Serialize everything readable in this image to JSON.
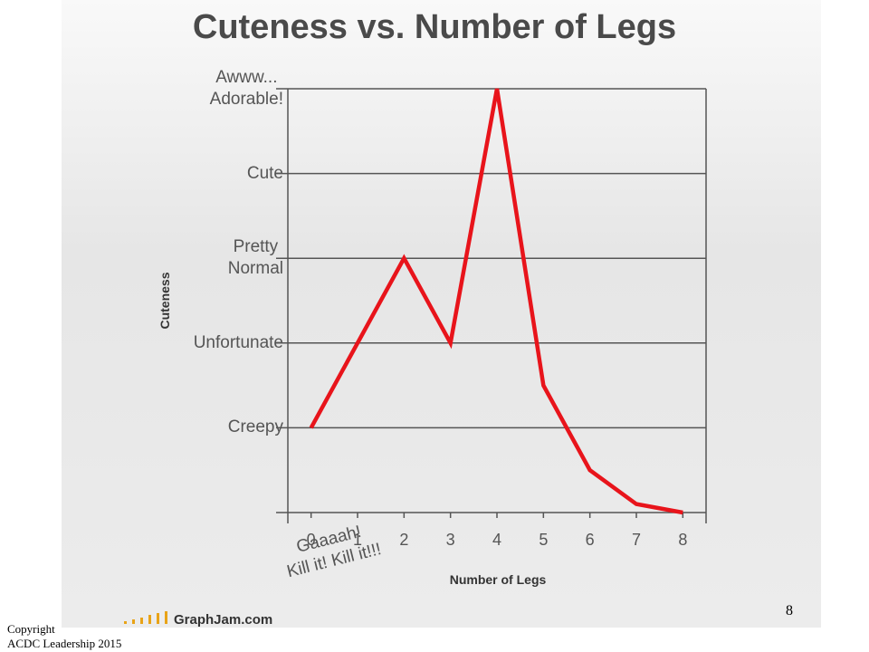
{
  "chart_data": {
    "type": "line",
    "title": "Cuteness vs. Number of Legs",
    "x_label": "Number of Legs",
    "y_label": "Cuteness",
    "x": [
      0,
      1,
      2,
      3,
      4,
      5,
      6,
      7,
      8
    ],
    "series": [
      {
        "name": "Cuteness",
        "color": "#e8141b",
        "values": [
          1,
          2,
          3,
          2,
          5,
          1.5,
          0.5,
          0.1,
          0
        ]
      }
    ],
    "xlim": [
      -0.5,
      8.5
    ],
    "xticks": [
      0,
      1,
      2,
      3,
      4,
      5,
      6,
      7,
      8
    ],
    "ylim": [
      0,
      5
    ],
    "yticks": [
      {
        "value": 0,
        "label": "Gaaaah!\nKill it! Kill it!!!"
      },
      {
        "value": 1,
        "label": "Creepy"
      },
      {
        "value": 2,
        "label": "Unfortunate"
      },
      {
        "value": 3,
        "label": "Pretty\nNormal"
      },
      {
        "value": 4,
        "label": "Cute"
      },
      {
        "value": 5,
        "label": "Awww...\nAdorable!"
      }
    ],
    "grid": true,
    "source": "GraphJam.com"
  },
  "slide": {
    "page_number": "8",
    "footer": "Copyright\nACDC Leadership 2015"
  }
}
